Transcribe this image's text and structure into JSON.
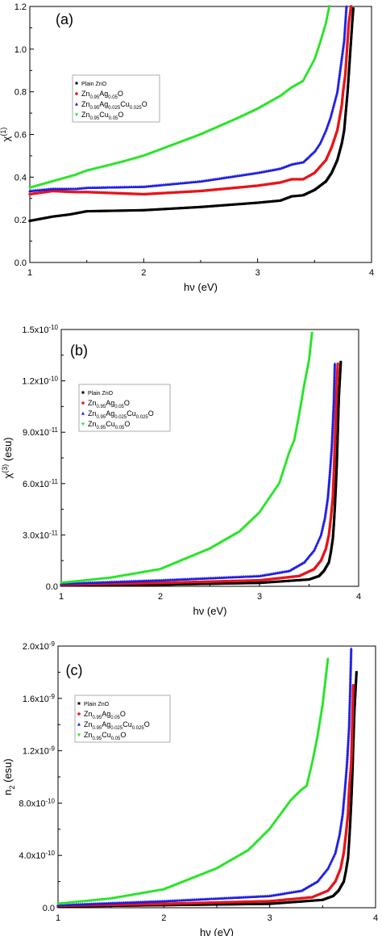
{
  "colors": {
    "plain": "#000000",
    "ag": "#e8141b",
    "agcu": "#1d1ce3",
    "cu": "#25e325"
  },
  "legend_entries": [
    {
      "base": "Plain ZnO",
      "key": "plain"
    },
    {
      "base": "Zn0.95Ag0.05O",
      "key": "ag"
    },
    {
      "base": "Zn0.95Ag0.025Cu0.025O",
      "key": "agcu"
    },
    {
      "base": "Zn0.95Cu0.05O",
      "key": "cu"
    }
  ],
  "chart_data": [
    {
      "type": "scatter",
      "panel_label": "(a)",
      "xlabel": "hν (eV)",
      "ylabel": "χ(1)",
      "xlim": [
        1,
        4
      ],
      "ylim": [
        0,
        1.2
      ],
      "xticks": [
        "1",
        "2",
        "3",
        "4"
      ],
      "yticks": [
        "0.0",
        "0.2",
        "0.4",
        "0.6",
        "0.8",
        "1.0",
        "1.2"
      ],
      "legend_position": "left",
      "series": [
        {
          "name": "Plain ZnO",
          "color_key": "plain",
          "points": [
            [
              1.0,
              0.195
            ],
            [
              1.2,
              0.215
            ],
            [
              1.35,
              0.225
            ],
            [
              1.5,
              0.24
            ],
            [
              2.0,
              0.245
            ],
            [
              2.5,
              0.26
            ],
            [
              3.0,
              0.28
            ],
            [
              3.2,
              0.29
            ],
            [
              3.3,
              0.31
            ],
            [
              3.4,
              0.315
            ],
            [
              3.5,
              0.34
            ],
            [
              3.6,
              0.38
            ],
            [
              3.65,
              0.42
            ],
            [
              3.7,
              0.48
            ],
            [
              3.72,
              0.52
            ],
            [
              3.74,
              0.56
            ],
            [
              3.76,
              0.62
            ],
            [
              3.77,
              0.68
            ],
            [
              3.78,
              0.74
            ],
            [
              3.79,
              0.8
            ],
            [
              3.8,
              0.88
            ],
            [
              3.81,
              0.96
            ],
            [
              3.82,
              1.04
            ],
            [
              3.83,
              1.12
            ],
            [
              3.84,
              1.19
            ]
          ]
        },
        {
          "name": "Zn0.95Ag0.05O",
          "color_key": "ag",
          "points": [
            [
              1.0,
              0.32
            ],
            [
              1.2,
              0.335
            ],
            [
              1.4,
              0.33
            ],
            [
              1.5,
              0.33
            ],
            [
              2.0,
              0.32
            ],
            [
              2.5,
              0.335
            ],
            [
              3.0,
              0.36
            ],
            [
              3.2,
              0.375
            ],
            [
              3.3,
              0.39
            ],
            [
              3.4,
              0.39
            ],
            [
              3.5,
              0.42
            ],
            [
              3.6,
              0.48
            ],
            [
              3.65,
              0.54
            ],
            [
              3.7,
              0.62
            ],
            [
              3.72,
              0.68
            ],
            [
              3.74,
              0.74
            ],
            [
              3.75,
              0.8
            ],
            [
              3.77,
              0.88
            ],
            [
              3.78,
              0.96
            ],
            [
              3.79,
              1.04
            ],
            [
              3.8,
              1.12
            ],
            [
              3.82,
              1.2
            ]
          ]
        },
        {
          "name": "Zn0.95Ag0.025Cu0.025O",
          "color_key": "agcu",
          "points": [
            [
              1.0,
              0.335
            ],
            [
              1.2,
              0.345
            ],
            [
              1.4,
              0.345
            ],
            [
              1.5,
              0.35
            ],
            [
              2.0,
              0.355
            ],
            [
              2.5,
              0.38
            ],
            [
              3.0,
              0.42
            ],
            [
              3.2,
              0.44
            ],
            [
              3.3,
              0.46
            ],
            [
              3.4,
              0.47
            ],
            [
              3.5,
              0.52
            ],
            [
              3.55,
              0.56
            ],
            [
              3.6,
              0.62
            ],
            [
              3.64,
              0.68
            ],
            [
              3.67,
              0.74
            ],
            [
              3.7,
              0.8
            ],
            [
              3.72,
              0.88
            ],
            [
              3.74,
              0.96
            ],
            [
              3.76,
              1.04
            ],
            [
              3.77,
              1.12
            ],
            [
              3.78,
              1.2
            ]
          ]
        },
        {
          "name": "Zn0.95Cu0.05O",
          "color_key": "cu",
          "points": [
            [
              1.0,
              0.35
            ],
            [
              1.2,
              0.38
            ],
            [
              1.4,
              0.41
            ],
            [
              1.5,
              0.43
            ],
            [
              1.8,
              0.47
            ],
            [
              2.0,
              0.5
            ],
            [
              2.3,
              0.56
            ],
            [
              2.5,
              0.6
            ],
            [
              2.8,
              0.67
            ],
            [
              3.0,
              0.72
            ],
            [
              3.2,
              0.78
            ],
            [
              3.3,
              0.82
            ],
            [
              3.4,
              0.85
            ],
            [
              3.5,
              0.95
            ],
            [
              3.55,
              1.03
            ],
            [
              3.6,
              1.12
            ],
            [
              3.63,
              1.2
            ]
          ]
        }
      ]
    },
    {
      "type": "scatter",
      "panel_label": "(b)",
      "xlabel": "hν (eV)",
      "ylabel": "χ(3) (esu)",
      "xlim": [
        1,
        4
      ],
      "ylim": [
        0,
        1.5e-10
      ],
      "xticks": [
        "1",
        "2",
        "3",
        "4"
      ],
      "yticks": [
        "0.0",
        "3.0x10-11",
        "6.0x10-11",
        "9.0x10-11",
        "1.2x10-10",
        "1.5x10-10"
      ],
      "legend_position": "left",
      "series": [
        {
          "name": "Plain ZnO",
          "color_key": "plain",
          "points": [
            [
              1.0,
              5e-13
            ],
            [
              2.0,
              1e-12
            ],
            [
              3.0,
              2e-12
            ],
            [
              3.5,
              4e-12
            ],
            [
              3.6,
              6e-12
            ],
            [
              3.65,
              9e-12
            ],
            [
              3.7,
              1.4e-11
            ],
            [
              3.72,
              2e-11
            ],
            [
              3.74,
              2.8e-11
            ],
            [
              3.75,
              3.6e-11
            ],
            [
              3.76,
              4.6e-11
            ],
            [
              3.77,
              5.8e-11
            ],
            [
              3.78,
              7.2e-11
            ],
            [
              3.79,
              9e-11
            ],
            [
              3.8,
              1.1e-10
            ],
            [
              3.82,
              1.31e-10
            ]
          ]
        },
        {
          "name": "Zn0.95Ag0.05O",
          "color_key": "ag",
          "points": [
            [
              1.0,
              1e-12
            ],
            [
              2.0,
              2e-12
            ],
            [
              3.0,
              3.5e-12
            ],
            [
              3.4,
              6e-12
            ],
            [
              3.55,
              1e-11
            ],
            [
              3.62,
              1.5e-11
            ],
            [
              3.67,
              2.2e-11
            ],
            [
              3.7,
              3e-11
            ],
            [
              3.72,
              4e-11
            ],
            [
              3.74,
              5.2e-11
            ],
            [
              3.75,
              6.6e-11
            ],
            [
              3.76,
              8.2e-11
            ],
            [
              3.77,
              1e-10
            ],
            [
              3.78,
              1.18e-10
            ],
            [
              3.79,
              1.3e-10
            ]
          ]
        },
        {
          "name": "Zn0.95Ag0.025Cu0.025O",
          "color_key": "agcu",
          "points": [
            [
              1.0,
              1.5e-12
            ],
            [
              2.0,
              3.5e-12
            ],
            [
              3.0,
              6e-12
            ],
            [
              3.3,
              9e-12
            ],
            [
              3.45,
              1.4e-11
            ],
            [
              3.55,
              2.1e-11
            ],
            [
              3.62,
              3e-11
            ],
            [
              3.66,
              4e-11
            ],
            [
              3.69,
              5.2e-11
            ],
            [
              3.71,
              6.6e-11
            ],
            [
              3.73,
              8.2e-11
            ],
            [
              3.74,
              9.5e-11
            ],
            [
              3.75,
              1.08e-10
            ],
            [
              3.76,
              1.3e-10
            ]
          ]
        },
        {
          "name": "Zn0.95Cu0.05O",
          "color_key": "cu",
          "points": [
            [
              1.0,
              2e-12
            ],
            [
              1.5,
              5e-12
            ],
            [
              2.0,
              1e-11
            ],
            [
              2.5,
              2.2e-11
            ],
            [
              2.8,
              3.2e-11
            ],
            [
              3.0,
              4.3e-11
            ],
            [
              3.2,
              6e-11
            ],
            [
              3.3,
              7.8e-11
            ],
            [
              3.35,
              8.5e-11
            ],
            [
              3.4,
              1e-10
            ],
            [
              3.45,
              1.17e-10
            ],
            [
              3.5,
              1.32e-10
            ],
            [
              3.53,
              1.48e-10
            ]
          ]
        }
      ]
    },
    {
      "type": "scatter",
      "panel_label": "(c)",
      "xlabel": "hν (eV)",
      "ylabel": "n2 (esu)",
      "xlim": [
        1,
        4
      ],
      "ylim": [
        0,
        2e-09
      ],
      "xticks": [
        "1",
        "2",
        "3",
        "4"
      ],
      "yticks": [
        "0.0",
        "4.0x10-10",
        "8.0x10-10",
        "1.2x10-9",
        "1.6x10-9",
        "2.0x10-9"
      ],
      "legend_position": "left",
      "series": [
        {
          "name": "Plain ZnO",
          "color_key": "plain",
          "points": [
            [
              1.0,
              1e-11
            ],
            [
              2.0,
              2e-11
            ],
            [
              3.0,
              3e-11
            ],
            [
              3.5,
              6e-11
            ],
            [
              3.6,
              9e-11
            ],
            [
              3.65,
              1.3e-10
            ],
            [
              3.7,
              2e-10
            ],
            [
              3.72,
              2.8e-10
            ],
            [
              3.74,
              3.8e-10
            ],
            [
              3.75,
              5e-10
            ],
            [
              3.76,
              6.4e-10
            ],
            [
              3.77,
              8e-10
            ],
            [
              3.78,
              1e-09
            ],
            [
              3.79,
              1.25e-09
            ],
            [
              3.8,
              1.5e-09
            ],
            [
              3.82,
              1.8e-09
            ]
          ]
        },
        {
          "name": "Zn0.95Ag0.05O",
          "color_key": "ag",
          "points": [
            [
              1.0,
              1.5e-11
            ],
            [
              2.0,
              3e-11
            ],
            [
              3.0,
              5e-11
            ],
            [
              3.4,
              8e-11
            ],
            [
              3.55,
              1.3e-10
            ],
            [
              3.62,
              2e-10
            ],
            [
              3.67,
              3e-10
            ],
            [
              3.7,
              4.2e-10
            ],
            [
              3.72,
              5.6e-10
            ],
            [
              3.74,
              7.2e-10
            ],
            [
              3.75,
              9e-10
            ],
            [
              3.77,
              1.1e-09
            ],
            [
              3.78,
              1.4e-09
            ],
            [
              3.79,
              1.7e-09
            ]
          ]
        },
        {
          "name": "Zn0.95Ag0.025Cu0.025O",
          "color_key": "agcu",
          "points": [
            [
              1.0,
              2e-11
            ],
            [
              2.0,
              5e-11
            ],
            [
              3.0,
              9e-11
            ],
            [
              3.3,
              1.3e-10
            ],
            [
              3.45,
              2e-10
            ],
            [
              3.55,
              3e-10
            ],
            [
              3.62,
              4.2e-10
            ],
            [
              3.66,
              5.6e-10
            ],
            [
              3.69,
              7.2e-10
            ],
            [
              3.71,
              9e-10
            ],
            [
              3.73,
              1.1e-09
            ],
            [
              3.75,
              1.38e-09
            ],
            [
              3.76,
              1.65e-09
            ],
            [
              3.77,
              1.98e-09
            ]
          ]
        },
        {
          "name": "Zn0.95Cu0.05O",
          "color_key": "cu",
          "points": [
            [
              1.0,
              3e-11
            ],
            [
              1.5,
              7e-11
            ],
            [
              2.0,
              1.4e-10
            ],
            [
              2.5,
              3e-10
            ],
            [
              2.8,
              4.4e-10
            ],
            [
              3.0,
              6e-10
            ],
            [
              3.2,
              8.2e-10
            ],
            [
              3.3,
              9e-10
            ],
            [
              3.35,
              9.3e-10
            ],
            [
              3.4,
              1.1e-09
            ],
            [
              3.45,
              1.3e-09
            ],
            [
              3.5,
              1.55e-09
            ],
            [
              3.55,
              1.9e-09
            ]
          ]
        }
      ]
    }
  ]
}
